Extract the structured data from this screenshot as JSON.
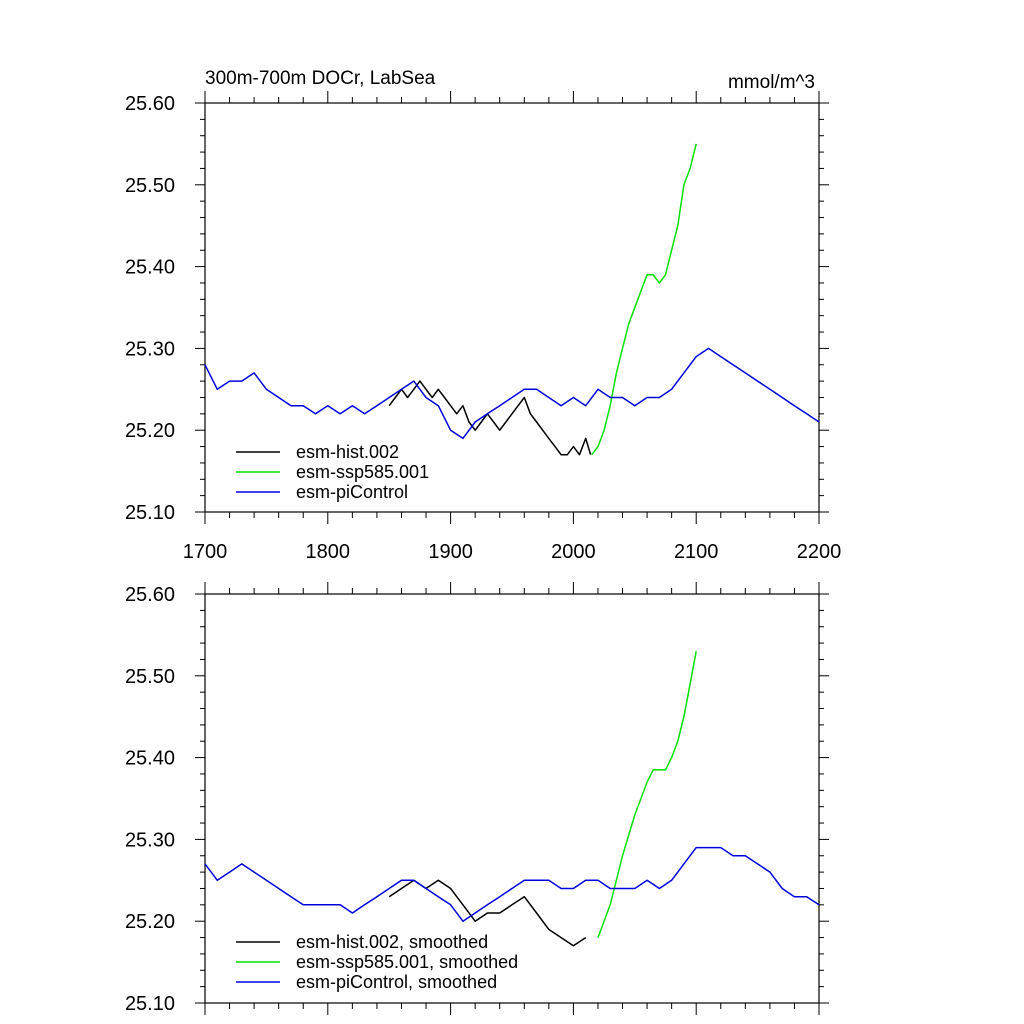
{
  "chart_data": [
    {
      "type": "line",
      "title_left": "300m-700m DOCr, LabSea",
      "title_right": "mmol/m^3",
      "xlim": [
        1700,
        2200
      ],
      "ylim": [
        25.1,
        25.6
      ],
      "x_ticks": [
        "1700",
        "1800",
        "1900",
        "2000",
        "2100",
        "2200"
      ],
      "y_ticks": [
        "25.10",
        "25.20",
        "25.30",
        "25.40",
        "25.50",
        "25.60"
      ],
      "legend_position": "bottom-left",
      "series": [
        {
          "name": "esm-hist.002",
          "color": "#000000",
          "x": [
            1850,
            1855,
            1860,
            1865,
            1870,
            1875,
            1880,
            1885,
            1890,
            1895,
            1900,
            1905,
            1910,
            1915,
            1920,
            1925,
            1930,
            1935,
            1940,
            1945,
            1950,
            1955,
            1960,
            1965,
            1970,
            1975,
            1980,
            1985,
            1990,
            1995,
            2000,
            2005,
            2010,
            2014
          ],
          "y": [
            25.23,
            25.24,
            25.25,
            25.24,
            25.25,
            25.26,
            25.25,
            25.24,
            25.25,
            25.24,
            25.23,
            25.22,
            25.23,
            25.21,
            25.2,
            25.21,
            25.22,
            25.21,
            25.2,
            25.21,
            25.22,
            25.23,
            25.24,
            25.22,
            25.21,
            25.2,
            25.19,
            25.18,
            25.17,
            25.17,
            25.18,
            25.17,
            25.19,
            25.17
          ]
        },
        {
          "name": "esm-ssp585.001",
          "color": "#00e000",
          "x": [
            2015,
            2020,
            2025,
            2030,
            2035,
            2040,
            2045,
            2050,
            2055,
            2060,
            2065,
            2070,
            2075,
            2080,
            2085,
            2090,
            2095,
            2100
          ],
          "y": [
            25.17,
            25.18,
            25.2,
            25.23,
            25.27,
            25.3,
            25.33,
            25.35,
            25.37,
            25.39,
            25.39,
            25.38,
            25.39,
            25.42,
            25.45,
            25.5,
            25.52,
            25.55
          ]
        },
        {
          "name": "esm-piControl",
          "color": "#0000dd",
          "x": [
            1700,
            1710,
            1720,
            1730,
            1740,
            1750,
            1760,
            1770,
            1780,
            1790,
            1800,
            1810,
            1820,
            1830,
            1840,
            1850,
            1860,
            1870,
            1880,
            1890,
            1900,
            1910,
            1920,
            1930,
            1940,
            1950,
            1960,
            1970,
            1980,
            1990,
            2000,
            2010,
            2020,
            2030,
            2040,
            2050,
            2060,
            2070,
            2080,
            2090,
            2100,
            2110,
            2120,
            2130,
            2140,
            2150,
            2160,
            2170,
            2180,
            2190,
            2200
          ],
          "y": [
            25.28,
            25.25,
            25.26,
            25.26,
            25.27,
            25.25,
            25.24,
            25.23,
            25.23,
            25.22,
            25.23,
            25.22,
            25.23,
            25.22,
            25.23,
            25.24,
            25.25,
            25.26,
            25.24,
            25.23,
            25.2,
            25.19,
            25.21,
            25.22,
            25.23,
            25.24,
            25.25,
            25.25,
            25.24,
            25.23,
            25.24,
            25.23,
            25.25,
            25.24,
            25.24,
            25.23,
            25.24,
            25.24,
            25.25,
            25.27,
            25.29,
            25.3,
            25.29,
            25.28,
            25.27,
            25.26,
            25.25,
            25.24,
            25.23,
            25.22,
            25.21
          ]
        }
      ]
    },
    {
      "type": "line",
      "xlim": [
        1700,
        2200
      ],
      "ylim": [
        25.1,
        25.6
      ],
      "y_ticks": [
        "25.10",
        "25.20",
        "25.30",
        "25.40",
        "25.50",
        "25.60"
      ],
      "legend_position": "bottom-left",
      "series": [
        {
          "name": "esm-hist.002, smoothed",
          "color": "#000000",
          "x": [
            1850,
            1860,
            1870,
            1880,
            1890,
            1900,
            1910,
            1920,
            1930,
            1940,
            1950,
            1960,
            1970,
            1980,
            1990,
            2000,
            2010
          ],
          "y": [
            25.23,
            25.24,
            25.25,
            25.24,
            25.25,
            25.24,
            25.22,
            25.2,
            25.21,
            25.21,
            25.22,
            25.23,
            25.21,
            25.19,
            25.18,
            25.17,
            25.18
          ]
        },
        {
          "name": "esm-ssp585.001, smoothed",
          "color": "#00e000",
          "x": [
            2020,
            2030,
            2040,
            2050,
            2060,
            2065,
            2070,
            2075,
            2080,
            2085,
            2090,
            2095,
            2100
          ],
          "y": [
            25.18,
            25.22,
            25.28,
            25.33,
            25.37,
            25.385,
            25.385,
            25.385,
            25.4,
            25.42,
            25.45,
            25.49,
            25.53
          ]
        },
        {
          "name": "esm-piControl, smoothed",
          "color": "#0000dd",
          "x": [
            1700,
            1710,
            1720,
            1730,
            1740,
            1750,
            1760,
            1770,
            1780,
            1790,
            1800,
            1810,
            1820,
            1830,
            1840,
            1850,
            1860,
            1870,
            1880,
            1890,
            1900,
            1910,
            1920,
            1930,
            1940,
            1950,
            1960,
            1970,
            1980,
            1990,
            2000,
            2010,
            2020,
            2030,
            2040,
            2050,
            2060,
            2070,
            2080,
            2090,
            2100,
            2110,
            2120,
            2130,
            2140,
            2150,
            2160,
            2170,
            2180,
            2190,
            2200
          ],
          "y": [
            25.27,
            25.25,
            25.26,
            25.27,
            25.26,
            25.25,
            25.24,
            25.23,
            25.22,
            25.22,
            25.22,
            25.22,
            25.21,
            25.22,
            25.23,
            25.24,
            25.25,
            25.25,
            25.24,
            25.23,
            25.22,
            25.2,
            25.21,
            25.22,
            25.23,
            25.24,
            25.25,
            25.25,
            25.25,
            25.24,
            25.24,
            25.25,
            25.25,
            25.24,
            25.24,
            25.24,
            25.25,
            25.24,
            25.25,
            25.27,
            25.29,
            25.29,
            25.29,
            25.28,
            25.28,
            25.27,
            25.26,
            25.24,
            25.23,
            25.23,
            25.22
          ]
        }
      ]
    }
  ]
}
